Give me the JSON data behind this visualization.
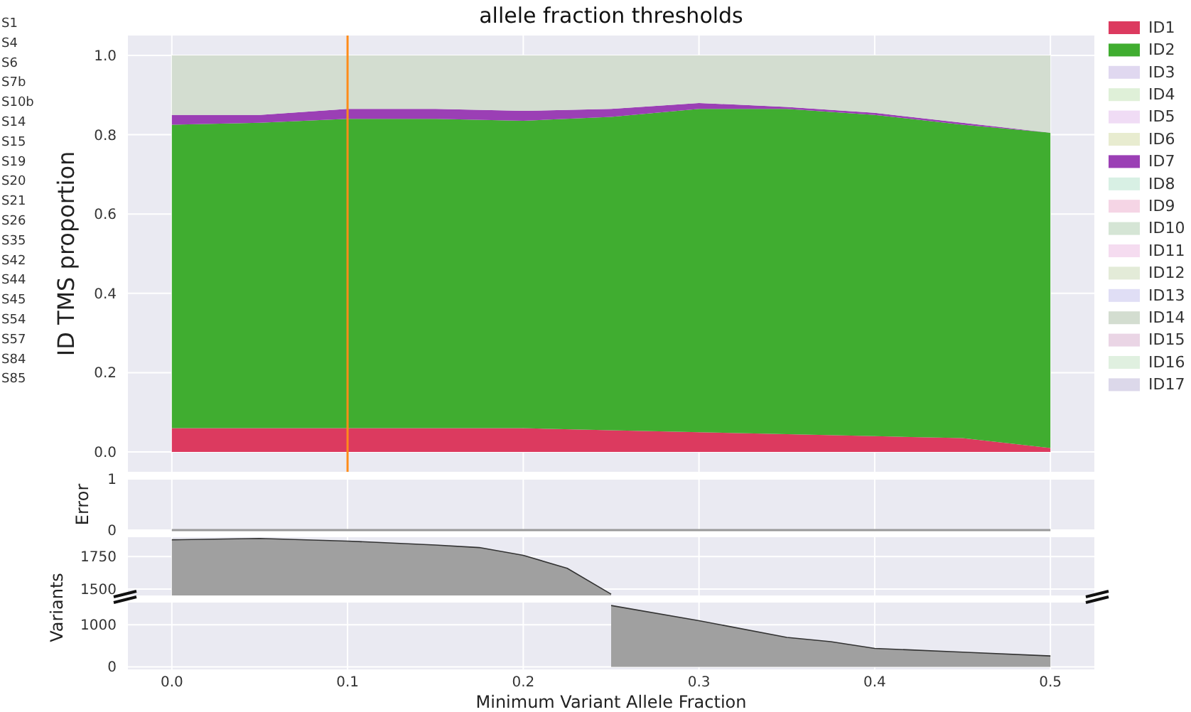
{
  "chart_data": [
    {
      "type": "area",
      "title": "allele fraction thresholds",
      "ylabel": "ID TMS proportion",
      "stacked": true,
      "grid": true,
      "legend": "top right",
      "tick_labels": "y",
      "annotations": [
        "S1",
        "S4",
        "S6",
        "S7b",
        "S10b",
        "S14",
        "S15",
        "S19",
        "S20",
        "S21",
        "S26",
        "S35",
        "S42",
        "S44",
        "S45",
        "S54",
        "S57",
        "S84",
        "S85"
      ],
      "x": [
        0,
        0.05,
        0.1,
        0.15,
        0.2,
        0.25,
        0.3,
        0.35,
        0.4,
        0.45,
        0.5
      ],
      "xlim": [
        -0.025,
        0.525
      ],
      "xticks": [
        0,
        0.1,
        0.2,
        0.3,
        0.4,
        0.5
      ],
      "ylim": [
        -0.05,
        1.05
      ],
      "yticks": [
        {
          "value": 0,
          "label": "0.0"
        },
        0.2,
        0.4,
        0.6,
        0.8,
        {
          "value": 1,
          "label": "1.0"
        }
      ],
      "ref_lines": [
        {
          "axis": "x",
          "value": 0.1,
          "color": "#ff8c1a"
        }
      ],
      "series": [
        {
          "name": "ID1",
          "color": "#dc3a5f",
          "values": [
            0.06,
            0.06,
            0.06,
            0.06,
            0.06,
            0.055,
            0.05,
            0.045,
            0.04,
            0.035,
            0.01
          ]
        },
        {
          "name": "ID2",
          "color": "#40ad30",
          "values": [
            0.765,
            0.77,
            0.78,
            0.78,
            0.775,
            0.79,
            0.815,
            0.82,
            0.81,
            0.79,
            0.795
          ]
        },
        {
          "name": "ID3",
          "color": "#e0d8f0",
          "values": [
            null,
            null,
            null,
            null,
            null,
            null,
            null,
            null,
            null,
            null,
            null
          ]
        },
        {
          "name": "ID4",
          "color": "#dff0d8",
          "values": [
            null,
            null,
            null,
            null,
            null,
            null,
            null,
            null,
            null,
            null,
            null
          ]
        },
        {
          "name": "ID5",
          "color": "#f0dcf5",
          "values": [
            null,
            null,
            null,
            null,
            null,
            null,
            null,
            null,
            null,
            null,
            null
          ]
        },
        {
          "name": "ID6",
          "color": "#e8ecd0",
          "values": [
            null,
            null,
            null,
            null,
            null,
            null,
            null,
            null,
            null,
            null,
            null
          ]
        },
        {
          "name": "ID7",
          "color": "#9b3fb5",
          "values": [
            0.025,
            0.02,
            0.025,
            0.025,
            0.025,
            0.02,
            0.015,
            0.005,
            0.005,
            0.005,
            0
          ]
        },
        {
          "name": "ID8",
          "color": "#d8f0e4",
          "values": [
            null,
            null,
            null,
            null,
            null,
            null,
            null,
            null,
            null,
            null,
            null
          ]
        },
        {
          "name": "ID9",
          "color": "#f5d5e5",
          "values": [
            null,
            null,
            null,
            null,
            null,
            null,
            null,
            null,
            null,
            null,
            null
          ]
        },
        {
          "name": "ID10",
          "color": "#d5e5d5",
          "values": [
            null,
            null,
            null,
            null,
            null,
            null,
            null,
            null,
            null,
            null,
            null
          ]
        },
        {
          "name": "ID11",
          "color": "#f5dcf0",
          "values": [
            null,
            null,
            null,
            null,
            null,
            null,
            null,
            null,
            null,
            null,
            null
          ]
        },
        {
          "name": "ID12",
          "color": "#e3ebd8",
          "values": [
            null,
            null,
            null,
            null,
            null,
            null,
            null,
            null,
            null,
            null,
            null
          ]
        },
        {
          "name": "ID13",
          "color": "#e0def5",
          "values": [
            null,
            null,
            null,
            null,
            null,
            null,
            null,
            null,
            null,
            null,
            null
          ]
        },
        {
          "name": "ID14",
          "color": "#d3ddd0",
          "values": [
            0.15,
            0.15,
            0.135,
            0.135,
            0.14,
            0.135,
            0.12,
            0.13,
            0.145,
            0.17,
            0.195
          ]
        },
        {
          "name": "ID15",
          "color": "#ead5e5",
          "values": [
            null,
            null,
            null,
            null,
            null,
            null,
            null,
            null,
            null,
            null,
            null
          ]
        },
        {
          "name": "ID16",
          "color": "#e0f0e0",
          "values": [
            null,
            null,
            null,
            null,
            null,
            null,
            null,
            null,
            null,
            null,
            null
          ]
        },
        {
          "name": "ID17",
          "color": "#dcd8ea",
          "values": [
            null,
            null,
            null,
            null,
            null,
            null,
            null,
            null,
            null,
            null,
            null
          ]
        }
      ]
    },
    {
      "type": "line",
      "ylabel": "Error",
      "grid": true,
      "tick_labels": "y",
      "x": [
        0,
        0.5
      ],
      "xlim": [
        -0.025,
        0.525
      ],
      "xticks": [
        0,
        0.1,
        0.2,
        0.3,
        0.4,
        0.5
      ],
      "ylim": [
        0,
        1
      ],
      "yticks": [
        0,
        1
      ],
      "series": [
        {
          "color": "#999999",
          "values": [
            0,
            0
          ]
        }
      ]
    },
    {
      "type": "area",
      "grid": true,
      "tick_labels": "y",
      "xlim": [
        -0.025,
        0.525
      ],
      "xticks": [
        0,
        0.1,
        0.2,
        0.3,
        0.4,
        0.5
      ],
      "ylim": [
        1450,
        1900
      ],
      "yticks": [
        1500,
        1750
      ],
      "series": [
        {
          "color": "#a0a0a0",
          "x": [
            0,
            0.05,
            0.1,
            0.15,
            0.175,
            0.2,
            0.225,
            0.25
          ],
          "values": [
            1880,
            1890,
            1870,
            1840,
            1820,
            1760,
            1660,
            1460
          ]
        }
      ]
    },
    {
      "type": "area",
      "xlabel": "Minimum Variant Allele Fraction",
      "ylabel": "Variants",
      "grid": true,
      "xlim": [
        -0.025,
        0.525
      ],
      "xticks": [
        {
          "value": 0,
          "label": "0.0"
        },
        0.1,
        0.2,
        0.3,
        0.4,
        0.5
      ],
      "ylim": [
        -60,
        1530
      ],
      "yticks": [
        0,
        1000
      ],
      "series": [
        {
          "color": "#a0a0a0",
          "x": [
            0.25,
            0.3,
            0.35,
            0.375,
            0.4,
            0.45,
            0.5
          ],
          "values": [
            1460,
            1100,
            700,
            600,
            440,
            350,
            260
          ]
        }
      ]
    }
  ]
}
